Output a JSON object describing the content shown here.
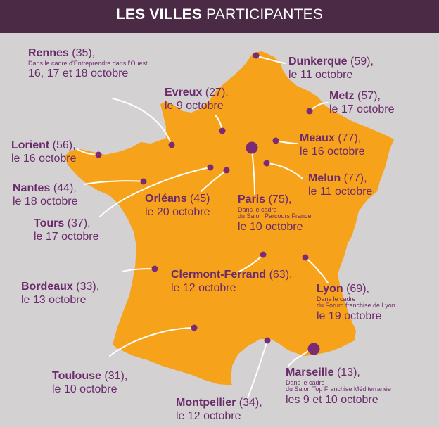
{
  "header": {
    "title_bold": "LES VILLES",
    "title_rest": "PARTICIPANTES"
  },
  "colors": {
    "header_bg": "#4b2a46",
    "background": "#d3d1d2",
    "map_fill": "#f7a21b",
    "text": "#6b2a6c",
    "marker": "#7a2b74",
    "lines": "#ffffff"
  },
  "cities": {
    "rennes": {
      "name": "Rennes",
      "count": "(35),",
      "note": "Dans le cadre d'Entreprendre dans l'Ouest",
      "date": "16, 17 et 18 octobre"
    },
    "dunkerque": {
      "name": "Dunkerque",
      "count": "(59),",
      "date": "le 11 octobre"
    },
    "evreux": {
      "name": "Evreux",
      "count": "(27),",
      "date": "le 9 octobre"
    },
    "metz": {
      "name": "Metz",
      "count": "(57),",
      "date": "le 17 octobre"
    },
    "lorient": {
      "name": "Lorient",
      "count": "(56),",
      "date": "le 16 octobre"
    },
    "meaux": {
      "name": "Meaux",
      "count": "(77),",
      "date": "le 16 octobre"
    },
    "nantes": {
      "name": "Nantes",
      "count": "(44),",
      "date": "le 18 octobre"
    },
    "melun": {
      "name": "Melun",
      "count": "(77),",
      "date": "le 11 octobre"
    },
    "orleans": {
      "name": "Orléans",
      "count": "(45)",
      "date": "le 20 octobre"
    },
    "paris": {
      "name": "Paris",
      "count": "(75),",
      "note_1": "Dans le cadre",
      "note_2": "du Salon Parcours France",
      "date": "le 10 octobre"
    },
    "tours": {
      "name": "Tours",
      "count": "(37),",
      "date": "le 17 octobre"
    },
    "clermont": {
      "name": "Clermont-Ferrand",
      "count": "(63),",
      "date": "le 12 octobre"
    },
    "bordeaux": {
      "name": "Bordeaux",
      "count": "(33),",
      "date": "le 13 octobre"
    },
    "lyon": {
      "name": "Lyon",
      "count": "(69),",
      "note_1": "Dans le cadre",
      "note_2": "du Forum franchise de Lyon",
      "date": "le 19 octobre"
    },
    "toulouse": {
      "name": "Toulouse",
      "count": "(31),",
      "date": "le 10 octobre"
    },
    "marseille": {
      "name": "Marseille",
      "count": "(13),",
      "note_1": "Dans le cadre",
      "note_2": "du Salon Top Franchise Méditerranée",
      "date": "les 9 et 10 octobre"
    },
    "montpellier": {
      "name": "Montpellier",
      "count": "(34),",
      "date": "le 12 octobre"
    }
  }
}
